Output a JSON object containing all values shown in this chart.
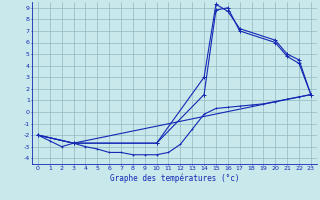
{
  "title": "Graphe des températures (°c)",
  "bg_color": "#c8e8ec",
  "grid_color": "#90b8c0",
  "line_color": "#1428b4",
  "xlim": [
    -0.5,
    23.5
  ],
  "ylim": [
    -4.5,
    9.5
  ],
  "xtick_labels": [
    "0",
    "1",
    "2",
    "3",
    "4",
    "5",
    "6",
    "7",
    "8",
    "9",
    "10",
    "11",
    "12",
    "13",
    "14",
    "15",
    "16",
    "17",
    "18",
    "19",
    "20",
    "21",
    "22",
    "23"
  ],
  "xtick_pos": [
    0,
    1,
    2,
    3,
    4,
    5,
    6,
    7,
    8,
    9,
    10,
    11,
    12,
    13,
    14,
    15,
    16,
    17,
    18,
    19,
    20,
    21,
    22,
    23
  ],
  "ytick_labels": [
    "-4",
    "-3",
    "-2",
    "-1",
    "0",
    "1",
    "2",
    "3",
    "4",
    "5",
    "6",
    "7",
    "8",
    "9"
  ],
  "ytick_pos": [
    -4,
    -3,
    -2,
    -1,
    0,
    1,
    2,
    3,
    4,
    5,
    6,
    7,
    8,
    9
  ],
  "curve1_x": [
    0,
    1,
    2,
    3,
    4,
    5,
    6,
    7,
    8,
    9,
    10,
    11,
    12,
    13,
    14,
    15,
    16,
    17,
    18,
    19,
    20,
    21,
    22,
    23
  ],
  "curve1_y": [
    -2.0,
    -2.5,
    -3.0,
    -2.7,
    -3.0,
    -3.2,
    -3.5,
    -3.5,
    -3.7,
    -3.7,
    -3.7,
    -3.5,
    -2.8,
    -1.5,
    -0.2,
    0.3,
    0.4,
    0.5,
    0.6,
    0.7,
    0.9,
    1.1,
    1.3,
    1.5
  ],
  "curve2_x": [
    0,
    3,
    10,
    14,
    15,
    16,
    17,
    20,
    21,
    22,
    23
  ],
  "curve2_y": [
    -2.0,
    -2.7,
    -2.7,
    3.0,
    9.3,
    8.7,
    7.2,
    6.2,
    5.0,
    4.5,
    1.5
  ],
  "curve3_x": [
    0,
    3,
    10,
    14,
    15,
    16,
    17,
    20,
    21,
    22,
    23
  ],
  "curve3_y": [
    -2.0,
    -2.7,
    -2.7,
    1.5,
    8.8,
    9.0,
    7.0,
    6.0,
    4.8,
    4.2,
    1.5
  ],
  "curve4_x": [
    0,
    3,
    23
  ],
  "curve4_y": [
    -2.0,
    -2.7,
    1.5
  ]
}
